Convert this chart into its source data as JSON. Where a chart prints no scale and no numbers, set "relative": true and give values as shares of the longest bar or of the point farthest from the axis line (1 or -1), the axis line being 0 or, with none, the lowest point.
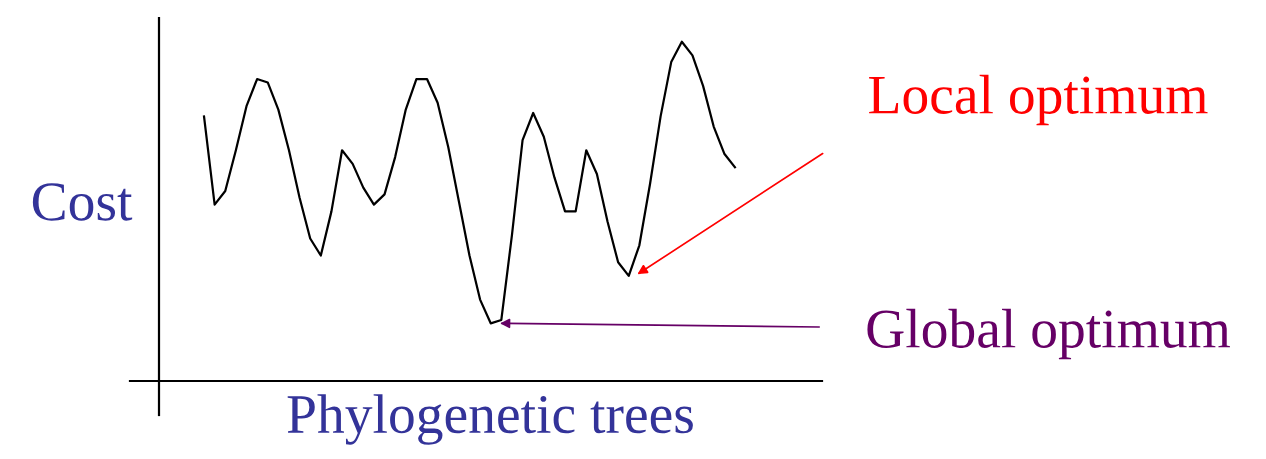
{
  "chart_data": {
    "type": "line",
    "relative": true,
    "xlabel": "Phylogenetic trees",
    "ylabel": "Cost",
    "categories": [
      null,
      null,
      null,
      null,
      null,
      null,
      null,
      null,
      null,
      null,
      null,
      null,
      null,
      null,
      null,
      null,
      null,
      null,
      null,
      null,
      null,
      null,
      null,
      null,
      null,
      null,
      null,
      null,
      null,
      null,
      null,
      null,
      null,
      null,
      null,
      null,
      null,
      null,
      null,
      null,
      null,
      null,
      null,
      null,
      null,
      null,
      null,
      null,
      null,
      null,
      null
    ],
    "series": [
      {
        "color": "#000000",
        "values": [
          0.78,
          0.52,
          0.56,
          0.68,
          0.81,
          0.89,
          0.88,
          0.8,
          0.68,
          0.54,
          0.42,
          0.37,
          0.5,
          0.68,
          0.64,
          0.57,
          0.52,
          0.55,
          0.66,
          0.8,
          0.89,
          0.89,
          0.82,
          0.69,
          0.53,
          0.37,
          0.24,
          0.17,
          0.18,
          0.43,
          0.71,
          0.79,
          0.72,
          0.6,
          0.5,
          0.5,
          0.68,
          0.61,
          0.47,
          0.35,
          0.31,
          0.4,
          0.58,
          0.78,
          0.94,
          1.0,
          0.96,
          0.87,
          0.75,
          0.67,
          0.63
        ]
      }
    ],
    "annotations": [
      "Local optimum",
      "Global optimum"
    ],
    "grid": false,
    "legend": false,
    "marker": "none",
    "line_style": "solid"
  }
}
